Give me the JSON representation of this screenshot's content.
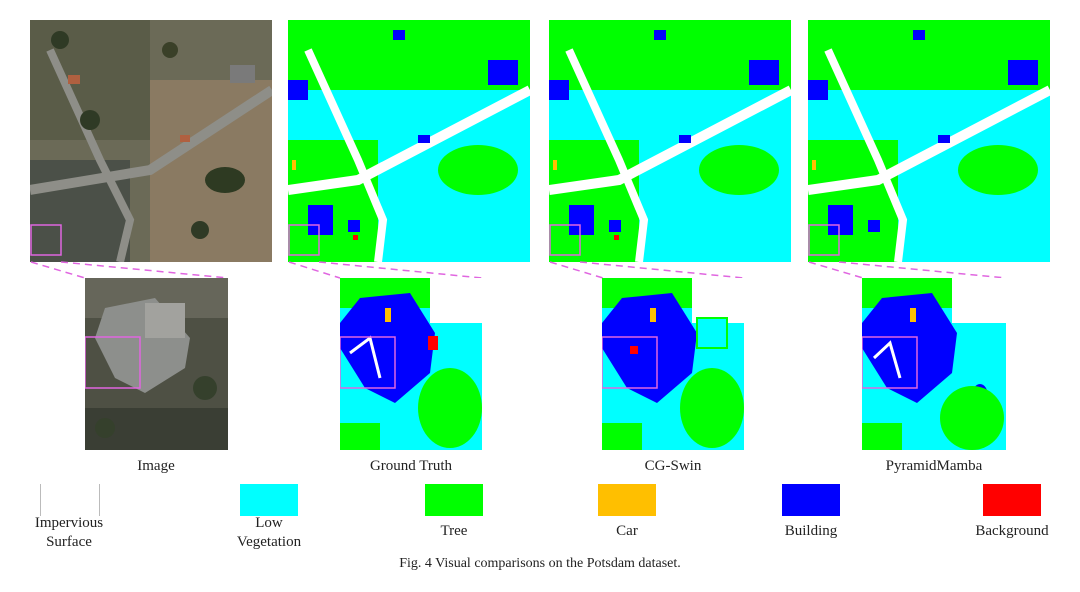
{
  "columns": [
    {
      "label": "Image"
    },
    {
      "label": "Ground Truth"
    },
    {
      "label": "CG-Swin"
    },
    {
      "label": "PyramidMamba"
    }
  ],
  "legend": [
    {
      "label": "Impervious Surface",
      "color": "#ffffff"
    },
    {
      "label": "Low Vegetation",
      "color": "#00ffff"
    },
    {
      "label": "Tree",
      "color": "#00ff00"
    },
    {
      "label": "Car",
      "color": "#ffbf00"
    },
    {
      "label": "Building",
      "color": "#0000ff"
    },
    {
      "label": "Background",
      "color": "#ff0000"
    }
  ],
  "caption": "Fig. 4 Visual comparisons on the Potsdam dataset.",
  "colors": {
    "impervious": "#ffffff",
    "low_vegetation": "#00ffff",
    "tree": "#00ff00",
    "car": "#ffbf00",
    "building": "#0000ff",
    "background": "#ff0000",
    "zoom_box": "#e066e0"
  }
}
